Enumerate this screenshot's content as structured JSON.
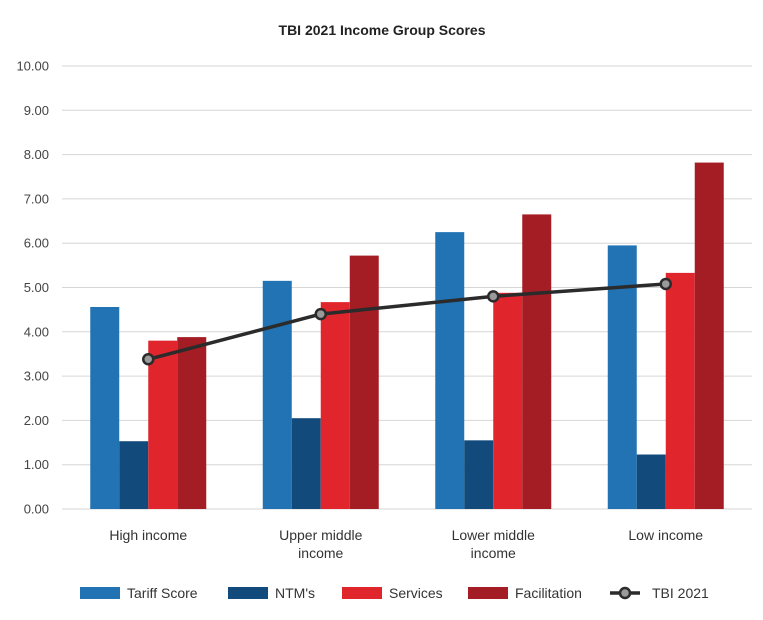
{
  "chart_data": {
    "type": "bar",
    "title": "TBI 2021 Income Group Scores",
    "categories": [
      [
        "High income"
      ],
      [
        "Upper middle",
        "income"
      ],
      [
        "Lower middle",
        "income"
      ],
      [
        "Low income"
      ]
    ],
    "ylim": [
      0,
      10
    ],
    "yticks": [
      "0.00",
      "1.00",
      "2.00",
      "3.00",
      "4.00",
      "5.00",
      "6.00",
      "7.00",
      "8.00",
      "9.00",
      "10.00"
    ],
    "grid": true,
    "legend_position": "bottom",
    "series": [
      {
        "name": "Tariff Score",
        "kind": "bar",
        "color": "#2173B3",
        "values": [
          4.56,
          5.15,
          6.25,
          5.95
        ]
      },
      {
        "name": "NTM's",
        "kind": "bar",
        "color": "#124A7C",
        "values": [
          1.53,
          2.05,
          1.55,
          1.23
        ]
      },
      {
        "name": "Services",
        "kind": "bar",
        "color": "#E0262C",
        "values": [
          3.8,
          4.67,
          4.88,
          5.33
        ]
      },
      {
        "name": "Facilitation",
        "kind": "bar",
        "color": "#A51D24",
        "values": [
          3.88,
          5.72,
          6.65,
          7.82
        ]
      },
      {
        "name": "TBI 2021",
        "kind": "line",
        "color": "#2b2b2b",
        "marker_fill": "#9a9a9a",
        "values": [
          3.38,
          4.4,
          4.8,
          5.08
        ]
      }
    ]
  }
}
